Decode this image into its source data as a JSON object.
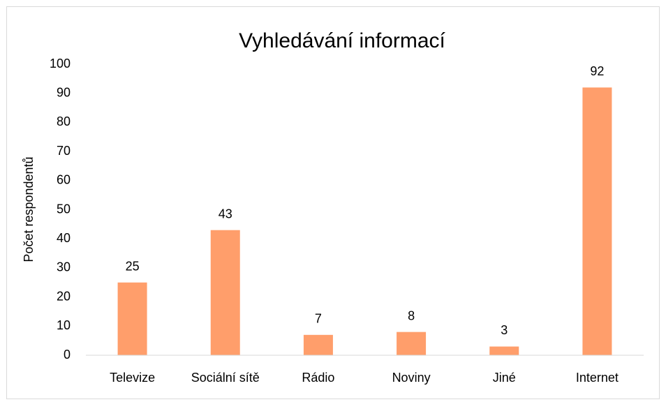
{
  "chart_data": {
    "type": "bar",
    "title": "Vyhledávání informací",
    "y_label": "Počet respondentů",
    "categories": [
      "Televize",
      "Sociální sítě",
      "Rádio",
      "Noviny",
      "Jiné",
      "Internet"
    ],
    "values": [
      25,
      43,
      7,
      8,
      3,
      92
    ],
    "color": "#ff9e6b",
    "ylim": [
      0,
      100
    ],
    "yticks": [
      0,
      10,
      20,
      30,
      40,
      50,
      60,
      70,
      80,
      90,
      100
    ],
    "grid": false,
    "data_labels": true
  }
}
